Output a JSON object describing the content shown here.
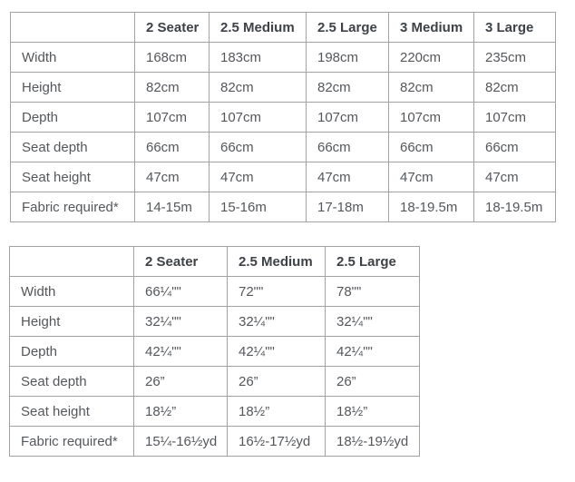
{
  "colors": {
    "border": "#a2a2a2",
    "header_text": "#3e4247",
    "body_text": "#54575b",
    "background": "#ffffff"
  },
  "table_metric": {
    "columns": [
      "",
      "2 Seater",
      "2.5 Medium",
      "2.5 Large",
      "3 Medium",
      "3 Large"
    ],
    "rows": [
      {
        "label": "Width",
        "values": [
          "168cm",
          "183cm",
          "198cm",
          "220cm",
          "235cm"
        ]
      },
      {
        "label": "Height",
        "values": [
          "82cm",
          "82cm",
          "82cm",
          "82cm",
          "82cm"
        ]
      },
      {
        "label": "Depth",
        "values": [
          "107cm",
          "107cm",
          "107cm",
          "107cm",
          "107cm"
        ]
      },
      {
        "label": "Seat depth",
        "values": [
          "66cm",
          "66cm",
          "66cm",
          "66cm",
          "66cm"
        ]
      },
      {
        "label": "Seat height",
        "values": [
          "47cm",
          "47cm",
          "47cm",
          "47cm",
          "47cm"
        ]
      },
      {
        "label": "Fabric required*",
        "values": [
          "14-15m",
          "15-16m",
          "17-18m",
          "18-19.5m",
          "18-19.5m"
        ]
      }
    ]
  },
  "table_imperial": {
    "columns": [
      "",
      "2 Seater",
      "2.5 Medium",
      "2.5 Large"
    ],
    "rows": [
      {
        "label": "Width",
        "values": [
          "66¼\"\"",
          "72\"\"",
          "78\"\""
        ]
      },
      {
        "label": "Height",
        "values": [
          "32¼\"\"",
          "32¼\"\"",
          "32¼\"\""
        ]
      },
      {
        "label": "Depth",
        "values": [
          "42¼\"\"",
          "42¼\"\"",
          "42¼\"\""
        ]
      },
      {
        "label": "Seat depth",
        "values": [
          "26”",
          "26”",
          "26”"
        ]
      },
      {
        "label": "Seat height",
        "values": [
          "18½”",
          "18½”",
          "18½”"
        ]
      },
      {
        "label": "Fabric required*",
        "values": [
          "15¼-16½yd",
          "16½-17½yd",
          "18½-19½yd"
        ]
      }
    ]
  }
}
